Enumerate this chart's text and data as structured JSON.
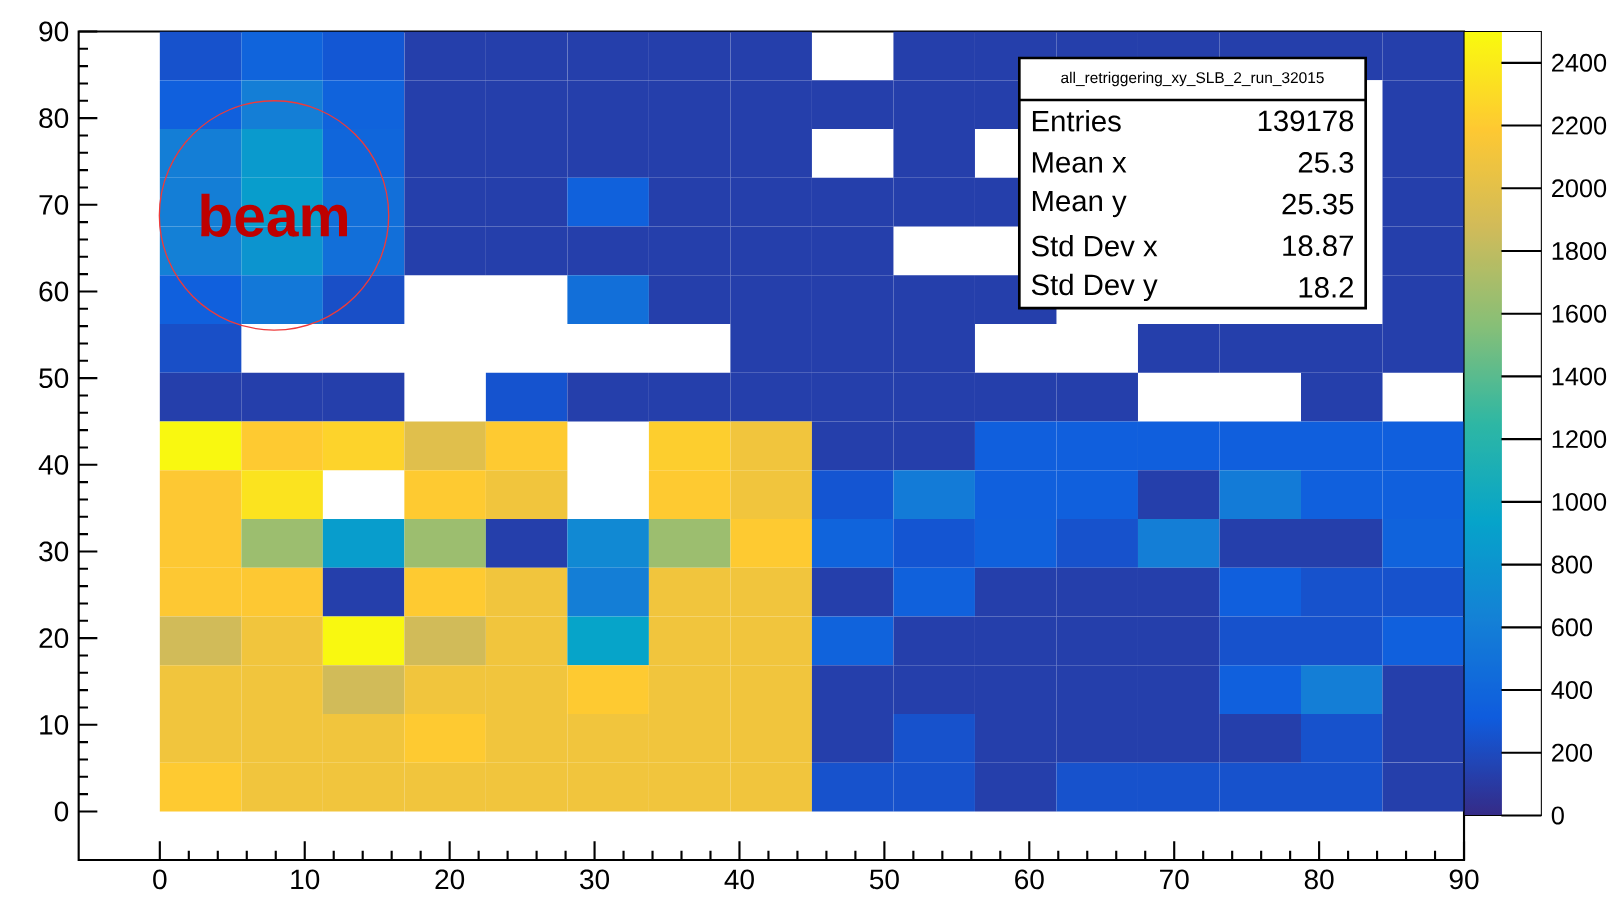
{
  "chart_data": {
    "type": "heatmap",
    "x": [
      2.8125,
      8.4375,
      14.0625,
      19.6875,
      25.3125,
      30.9375,
      36.5625,
      42.1875,
      47.8125,
      53.4375,
      59.0625,
      64.6875,
      70.3125,
      75.9375,
      81.5625,
      87.1875
    ],
    "y": [
      87.1875,
      81.5625,
      75.9375,
      70.3125,
      64.6875,
      59.0625,
      53.4375,
      47.8125,
      42.1875,
      36.5625,
      30.9375,
      25.3125,
      19.6875,
      14.0625,
      8.4375,
      2.8125
    ],
    "cells": [
      [
        250,
        380,
        280,
        130,
        130,
        130,
        130,
        130,
        null,
        130,
        130,
        130,
        130,
        130,
        130,
        130
      ],
      [
        350,
        600,
        370,
        130,
        130,
        130,
        130,
        130,
        130,
        130,
        130,
        null,
        null,
        null,
        null,
        130
      ],
      [
        600,
        850,
        400,
        130,
        130,
        130,
        130,
        130,
        null,
        130,
        null,
        null,
        null,
        null,
        null,
        130
      ],
      [
        600,
        880,
        480,
        130,
        130,
        360,
        130,
        130,
        130,
        130,
        130,
        null,
        null,
        null,
        null,
        130
      ],
      [
        620,
        800,
        480,
        130,
        130,
        130,
        130,
        130,
        130,
        null,
        null,
        null,
        null,
        null,
        null,
        130
      ],
      [
        350,
        550,
        230,
        null,
        null,
        480,
        130,
        130,
        130,
        130,
        130,
        null,
        null,
        null,
        null,
        130
      ],
      [
        230,
        null,
        null,
        null,
        null,
        null,
        null,
        130,
        130,
        130,
        null,
        null,
        130,
        130,
        130,
        130
      ],
      [
        130,
        130,
        130,
        null,
        260,
        130,
        130,
        130,
        130,
        130,
        130,
        130,
        null,
        null,
        130,
        null
      ],
      [
        2480,
        2200,
        2250,
        1980,
        2200,
        null,
        2220,
        2100,
        130,
        130,
        340,
        340,
        340,
        340,
        340,
        340
      ],
      [
        2180,
        2350,
        null,
        2200,
        2100,
        null,
        2200,
        2100,
        270,
        580,
        350,
        350,
        130,
        580,
        350,
        350
      ],
      [
        2180,
        1650,
        880,
        1650,
        130,
        700,
        1650,
        2200,
        380,
        270,
        360,
        250,
        600,
        130,
        130,
        370
      ],
      [
        2180,
        2180,
        130,
        2200,
        2100,
        600,
        2100,
        2100,
        130,
        360,
        130,
        130,
        130,
        340,
        250,
        250
      ],
      [
        1880,
        2100,
        2480,
        1880,
        2100,
        940,
        2100,
        2100,
        370,
        130,
        130,
        130,
        130,
        250,
        250,
        350
      ],
      [
        2100,
        2100,
        1880,
        2100,
        2100,
        2200,
        2100,
        2100,
        130,
        130,
        130,
        130,
        130,
        350,
        600,
        130
      ],
      [
        2100,
        2100,
        2100,
        2200,
        2100,
        2100,
        2100,
        2100,
        130,
        250,
        130,
        130,
        130,
        130,
        250,
        130
      ],
      [
        2200,
        2100,
        2100,
        2100,
        2100,
        2100,
        2100,
        2100,
        250,
        250,
        130,
        250,
        250,
        250,
        250,
        130
      ]
    ],
    "xlim": [
      -5.6,
      90
    ],
    "ylim": [
      -5.6,
      90
    ],
    "xticks": [
      0,
      10,
      20,
      30,
      40,
      50,
      60,
      70,
      80,
      90
    ],
    "yticks": [
      0,
      10,
      20,
      30,
      40,
      50,
      60,
      70,
      80,
      90
    ],
    "clim": [
      0,
      2500
    ],
    "cticks": [
      0,
      200,
      400,
      600,
      800,
      1000,
      1200,
      1400,
      1600,
      1800,
      2000,
      2200,
      2400
    ],
    "annotations": [
      "beam",
      "all_retriggering_xy_SLB_2_run_32015",
      "Entries",
      "139178",
      "Mean x",
      "25.3",
      "Mean y",
      "25.35",
      "Std Dev x",
      "18.87",
      "Std Dev y",
      "18.2"
    ]
  }
}
